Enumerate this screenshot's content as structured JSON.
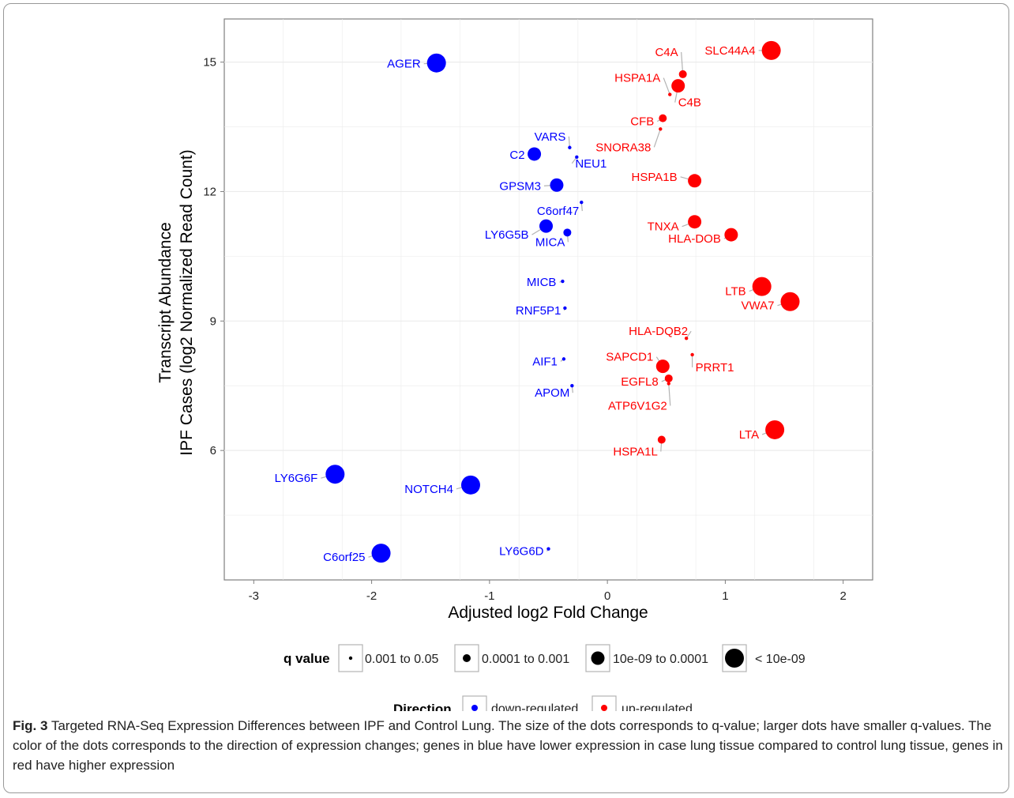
{
  "chart_data": {
    "type": "scatter",
    "xlabel": "Adjusted log2 Fold Change",
    "ylabel_line1": "Transcript Abundance",
    "ylabel_line2": "IPF Cases (log2 Normalized Read Count)",
    "xlim": [
      -3.25,
      2.25
    ],
    "ylim": [
      3.0,
      16.0
    ],
    "x_ticks": [
      -3,
      -2,
      -1,
      0,
      1,
      2
    ],
    "y_ticks": [
      6,
      9,
      12,
      15
    ],
    "grid": true,
    "colors": {
      "down-regulated": "#0000ff",
      "up-regulated": "#ff0000",
      "panel": "#ffffff",
      "grid": "#ebebeb"
    },
    "points": [
      {
        "gene": "AGER",
        "x": -1.45,
        "y": 14.98,
        "q": "< 10e-09",
        "direction": "down-regulated"
      },
      {
        "gene": "C2",
        "x": -0.62,
        "y": 12.87,
        "q": "10e-09 to 0.0001",
        "direction": "down-regulated"
      },
      {
        "gene": "VARS",
        "x": -0.32,
        "y": 13.02,
        "q": "0.001 to 0.05",
        "direction": "down-regulated"
      },
      {
        "gene": "NEU1",
        "x": -0.26,
        "y": 12.8,
        "q": "0.001 to 0.05",
        "direction": "down-regulated"
      },
      {
        "gene": "GPSM3",
        "x": -0.43,
        "y": 12.15,
        "q": "10e-09 to 0.0001",
        "direction": "down-regulated"
      },
      {
        "gene": "C6orf47",
        "x": -0.22,
        "y": 11.75,
        "q": "0.001 to 0.05",
        "direction": "down-regulated"
      },
      {
        "gene": "LY6G5B",
        "x": -0.52,
        "y": 11.2,
        "q": "10e-09 to 0.0001",
        "direction": "down-regulated"
      },
      {
        "gene": "MICA",
        "x": -0.34,
        "y": 11.05,
        "q": "0.0001 to 0.001",
        "direction": "down-regulated"
      },
      {
        "gene": "MICB",
        "x": -0.38,
        "y": 9.92,
        "q": "0.001 to 0.05",
        "direction": "down-regulated"
      },
      {
        "gene": "RNF5P1",
        "x": -0.36,
        "y": 9.3,
        "q": "0.001 to 0.05",
        "direction": "down-regulated"
      },
      {
        "gene": "AIF1",
        "x": -0.37,
        "y": 8.12,
        "q": "0.001 to 0.05",
        "direction": "down-regulated"
      },
      {
        "gene": "APOM",
        "x": -0.3,
        "y": 7.5,
        "q": "0.001 to 0.05",
        "direction": "down-regulated"
      },
      {
        "gene": "LY6G6F",
        "x": -2.31,
        "y": 5.45,
        "q": "< 10e-09",
        "direction": "down-regulated"
      },
      {
        "gene": "NOTCH4",
        "x": -1.16,
        "y": 5.2,
        "q": "< 10e-09",
        "direction": "down-regulated"
      },
      {
        "gene": "C6orf25",
        "x": -1.92,
        "y": 3.62,
        "q": "< 10e-09",
        "direction": "down-regulated"
      },
      {
        "gene": "LY6G6D",
        "x": -0.5,
        "y": 3.72,
        "q": "0.001 to 0.05",
        "direction": "down-regulated"
      },
      {
        "gene": "SLC44A4",
        "x": 1.39,
        "y": 15.27,
        "q": "< 10e-09",
        "direction": "up-regulated"
      },
      {
        "gene": "C4A",
        "x": 0.64,
        "y": 14.72,
        "q": "0.0001 to 0.001",
        "direction": "up-regulated"
      },
      {
        "gene": "HSPA1A",
        "x": 0.53,
        "y": 14.25,
        "q": "0.001 to 0.05",
        "direction": "up-regulated"
      },
      {
        "gene": "C4B",
        "x": 0.6,
        "y": 14.45,
        "q": "10e-09 to 0.0001",
        "direction": "up-regulated"
      },
      {
        "gene": "CFB",
        "x": 0.47,
        "y": 13.7,
        "q": "0.0001 to 0.001",
        "direction": "up-regulated"
      },
      {
        "gene": "SNORA38",
        "x": 0.45,
        "y": 13.45,
        "q": "0.001 to 0.05",
        "direction": "up-regulated"
      },
      {
        "gene": "HSPA1B",
        "x": 0.74,
        "y": 12.25,
        "q": "10e-09 to 0.0001",
        "direction": "up-regulated"
      },
      {
        "gene": "TNXA",
        "x": 0.74,
        "y": 11.3,
        "q": "10e-09 to 0.0001",
        "direction": "up-regulated"
      },
      {
        "gene": "HLA-DOB",
        "x": 1.05,
        "y": 11.0,
        "q": "10e-09 to 0.0001",
        "direction": "up-regulated"
      },
      {
        "gene": "LTB",
        "x": 1.31,
        "y": 9.8,
        "q": "< 10e-09",
        "direction": "up-regulated"
      },
      {
        "gene": "VWA7",
        "x": 1.55,
        "y": 9.45,
        "q": "< 10e-09",
        "direction": "up-regulated"
      },
      {
        "gene": "HLA-DQB2",
        "x": 0.67,
        "y": 8.6,
        "q": "0.001 to 0.05",
        "direction": "up-regulated"
      },
      {
        "gene": "PRRT1",
        "x": 0.72,
        "y": 8.22,
        "q": "0.001 to 0.05",
        "direction": "up-regulated"
      },
      {
        "gene": "SAPCD1",
        "x": 0.47,
        "y": 7.95,
        "q": "10e-09 to 0.0001",
        "direction": "up-regulated"
      },
      {
        "gene": "EGFL8",
        "x": 0.52,
        "y": 7.67,
        "q": "0.0001 to 0.001",
        "direction": "up-regulated"
      },
      {
        "gene": "ATP6V1G2",
        "x": 0.52,
        "y": 7.55,
        "q": "0.001 to 0.05",
        "direction": "up-regulated"
      },
      {
        "gene": "LTA",
        "x": 1.42,
        "y": 6.48,
        "q": "< 10e-09",
        "direction": "up-regulated"
      },
      {
        "gene": "HSPA1L",
        "x": 0.46,
        "y": 6.25,
        "q": "0.0001 to 0.001",
        "direction": "up-regulated"
      }
    ],
    "legend": {
      "size_title": "q value",
      "size_items": [
        "0.001 to 0.05",
        "0.0001 to 0.001",
        "10e-09 to 0.0001",
        "< 10e-09"
      ],
      "color_title": "Direction",
      "color_items": [
        "down-regulated",
        "up-regulated"
      ]
    }
  },
  "caption": {
    "label": "Fig. 3",
    "text": " Targeted RNA-Seq Expression Differences between IPF and Control Lung. The size of the dots corresponds to q-value; larger dots have smaller q-values. The color of the dots corresponds to the direction of expression changes; genes in blue have lower expression in case lung tissue compared to control lung tissue, genes in red have higher expression"
  }
}
